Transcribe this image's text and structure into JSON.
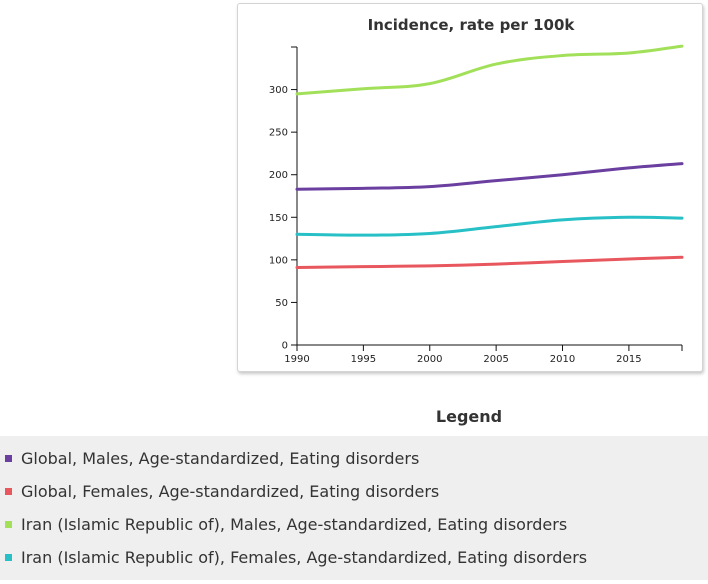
{
  "chart_data": {
    "type": "line",
    "title": "Incidence, rate per 100k",
    "xlabel": "",
    "ylabel": "",
    "xlim": [
      1990,
      2019
    ],
    "ylim": [
      0,
      350
    ],
    "x_ticks": [
      1990,
      1995,
      2000,
      2005,
      2010,
      2015
    ],
    "y_ticks": [
      0,
      50,
      100,
      150,
      200,
      250,
      300
    ],
    "x": [
      1990,
      1995,
      2000,
      2005,
      2010,
      2015,
      2019
    ],
    "series": [
      {
        "name": "Global, Males, Age-standardized, Eating disorders",
        "color": "#6a3fa0",
        "values": [
          183,
          184,
          186,
          193,
          200,
          208,
          213
        ]
      },
      {
        "name": "Global, Females, Age-standardized, Eating disorders",
        "color": "#e8575e",
        "values": [
          91,
          92,
          93,
          95,
          98,
          101,
          103
        ]
      },
      {
        "name": "Iran (Islamic Republic of), Males, Age-standardized, Eating disorders",
        "color": "#a2e05a",
        "values": [
          295,
          301,
          307,
          330,
          340,
          343,
          351
        ]
      },
      {
        "name": "Iran (Islamic Republic of), Females, Age-standardized, Eating disorders",
        "color": "#27c0c6",
        "values": [
          130,
          129,
          131,
          139,
          147,
          150,
          149
        ]
      }
    ]
  },
  "legend": {
    "title": "Legend",
    "items": [
      {
        "label": "Global, Males, Age-standardized, Eating disorders"
      },
      {
        "label": "Global, Females, Age-standardized, Eating disorders"
      },
      {
        "label": "Iran (Islamic Republic of), Males, Age-standardized, Eating disorders"
      },
      {
        "label": "Iran (Islamic Republic of), Females, Age-standardized, Eating disorders"
      }
    ]
  }
}
